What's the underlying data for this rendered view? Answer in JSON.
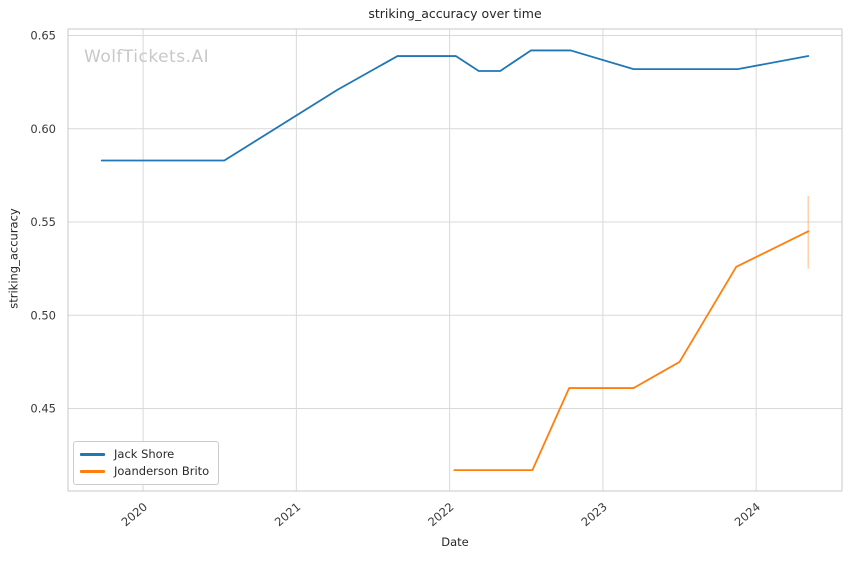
{
  "watermark": "WolfTickets.AI",
  "chart_data": {
    "type": "line",
    "title": "striking_accuracy over time",
    "xlabel": "Date",
    "ylabel": "striking_accuracy",
    "xlim": [
      2019.51,
      2024.56
    ],
    "ylim": [
      0.4058,
      0.6535
    ],
    "xticks": [
      2020,
      2021,
      2022,
      2023,
      2024
    ],
    "yticks": [
      0.45,
      0.5,
      0.55,
      0.6,
      0.65
    ],
    "grid": true,
    "legend_position": "lower-left",
    "colors": {
      "grid": "#d9d9d9",
      "plot_border": "#c8c8c8",
      "tick_label": "#3a3a3a",
      "watermark": "#c8c8c8"
    },
    "series": [
      {
        "name": "Jack Shore",
        "color": "#1f77b4",
        "x": [
          2019.73,
          2020.53,
          2021.27,
          2021.66,
          2022.04,
          2022.19,
          2022.33,
          2022.53,
          2022.79,
          2023.2,
          2023.88,
          2024.34
        ],
        "y": [
          0.583,
          0.583,
          0.621,
          0.639,
          0.639,
          0.631,
          0.631,
          0.642,
          0.642,
          0.632,
          0.632,
          0.639
        ]
      },
      {
        "name": "Joanderson Brito",
        "color": "#ff7f0e",
        "x": [
          2022.03,
          2022.54,
          2022.78,
          2023.2,
          2023.5,
          2023.87,
          2024.34
        ],
        "y": [
          0.417,
          0.417,
          0.461,
          0.461,
          0.475,
          0.526,
          0.545
        ],
        "error_bar": {
          "x": 2024.34,
          "y_low": 0.525,
          "y_high": 0.564
        }
      }
    ]
  }
}
